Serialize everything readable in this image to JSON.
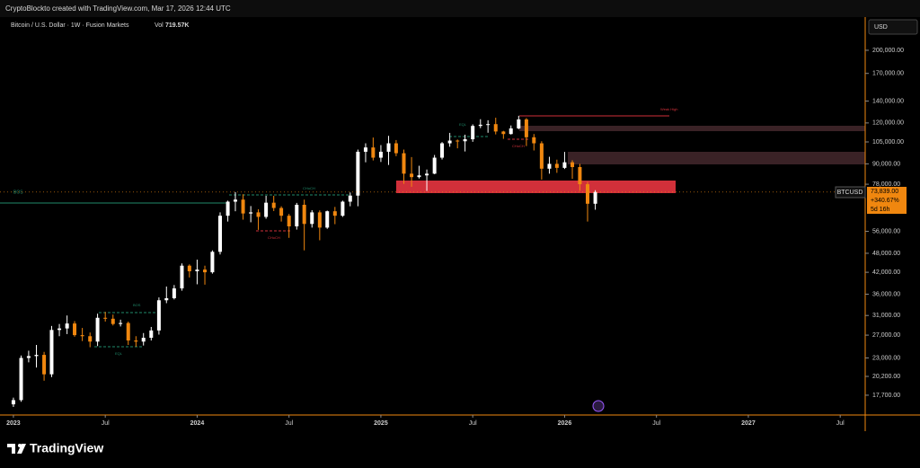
{
  "header": {
    "text": "CryptoBlockto created with TradingView.com, Mar 17, 2026 12:44 UTC"
  },
  "chart_data": {
    "type": "candlestick",
    "title": "Bitcoin / U.S. Dollar · 1W · Fusion Markets",
    "volume_label": "Vol",
    "volume": "719.57K",
    "currency": "USD",
    "log_scale": true,
    "up_color": "#ffffff",
    "down_color": "#f0870f",
    "x": [
      2023.0,
      2023.042,
      2023.083,
      2023.125,
      2023.167,
      2023.208,
      2023.25,
      2023.292,
      2023.333,
      2023.375,
      2023.417,
      2023.458,
      2023.5,
      2023.542,
      2023.583,
      2023.625,
      2023.667,
      2023.708,
      2023.75,
      2023.792,
      2023.833,
      2023.875,
      2023.917,
      2023.958,
      2024.0,
      2024.042,
      2024.083,
      2024.125,
      2024.167,
      2024.208,
      2024.25,
      2024.292,
      2024.333,
      2024.375,
      2024.417,
      2024.458,
      2024.5,
      2024.542,
      2024.583,
      2024.625,
      2024.667,
      2024.708,
      2024.75,
      2024.792,
      2024.833,
      2024.875,
      2024.917,
      2024.958,
      2025.0,
      2025.042,
      2025.083,
      2025.125,
      2025.167,
      2025.208,
      2025.25,
      2025.292,
      2025.333,
      2025.375,
      2025.417,
      2025.458,
      2025.5,
      2025.542,
      2025.583,
      2025.625,
      2025.667,
      2025.708,
      2025.75,
      2025.792,
      2025.833,
      2025.875,
      2025.917,
      2025.958,
      2026.0,
      2026.042,
      2026.083,
      2026.125,
      2026.167
    ],
    "open": [
      16600,
      17100,
      23000,
      23300,
      23500,
      20500,
      28000,
      28300,
      29300,
      27000,
      26800,
      25800,
      30500,
      30300,
      29200,
      29400,
      26000,
      25800,
      26500,
      27900,
      34500,
      35000,
      37500,
      44000,
      42300,
      42800,
      42000,
      48500,
      62500,
      69000,
      70000,
      63500,
      64000,
      62000,
      68500,
      66000,
      62500,
      58000,
      67500,
      59000,
      64000,
      57500,
      64500,
      62500,
      69000,
      72000,
      98000,
      101000,
      94000,
      98000,
      104000,
      97000,
      84000,
      82000,
      83000,
      84000,
      94000,
      104000,
      106000,
      105500,
      107000,
      117500,
      118500,
      119000,
      113000,
      111000,
      115500,
      123000,
      108500,
      104000,
      87000,
      90000,
      87500,
      91000,
      88000,
      78000,
      68000
    ],
    "high": [
      17400,
      23400,
      24200,
      25200,
      24000,
      28800,
      29200,
      31000,
      29800,
      28400,
      27500,
      31400,
      31800,
      31200,
      30100,
      29700,
      26800,
      27400,
      28600,
      35200,
      38000,
      38400,
      44700,
      44400,
      45900,
      44000,
      49000,
      64000,
      69500,
      73800,
      72700,
      66900,
      65400,
      71900,
      71900,
      66800,
      63300,
      68400,
      70000,
      65000,
      64900,
      64800,
      66500,
      69500,
      73600,
      99500,
      104000,
      108300,
      102700,
      109600,
      106400,
      99500,
      94400,
      88800,
      86500,
      95800,
      104900,
      111900,
      106800,
      110500,
      118800,
      123200,
      122300,
      124500,
      113500,
      117900,
      126200,
      124200,
      111000,
      105500,
      94600,
      92700,
      97900,
      92300,
      90000,
      79300,
      74800
    ],
    "low": [
      16300,
      16900,
      22300,
      21500,
      19600,
      20100,
      26800,
      27200,
      26700,
      25900,
      24800,
      25000,
      29700,
      28900,
      28700,
      25200,
      24900,
      25100,
      26000,
      27100,
      33800,
      34700,
      36900,
      40500,
      38600,
      38500,
      41600,
      47600,
      60000,
      64500,
      60800,
      59700,
      56600,
      61200,
      64600,
      60000,
      53500,
      56700,
      49000,
      57500,
      52600,
      57000,
      58900,
      62000,
      66800,
      66800,
      91000,
      92200,
      91200,
      89300,
      95000,
      78200,
      76600,
      81200,
      74400,
      83700,
      92800,
      101500,
      100400,
      98200,
      105100,
      115700,
      112000,
      110700,
      107300,
      110600,
      114800,
      102000,
      98900,
      80600,
      84000,
      84500,
      86800,
      81000,
      74500,
      60000,
      65200
    ],
    "close": [
      17100,
      23000,
      23300,
      23500,
      20500,
      28000,
      28300,
      29300,
      27000,
      26800,
      25800,
      30500,
      30300,
      29200,
      29400,
      26000,
      25800,
      26500,
      27900,
      34500,
      35000,
      37500,
      44000,
      42300,
      42800,
      42000,
      48500,
      62500,
      69000,
      70000,
      63500,
      64000,
      62000,
      68500,
      66000,
      62500,
      58000,
      67500,
      59000,
      64000,
      57500,
      64500,
      62500,
      69000,
      72000,
      98000,
      101000,
      94000,
      98000,
      104000,
      97000,
      84000,
      82000,
      83000,
      84000,
      94000,
      104000,
      106000,
      105500,
      107000,
      117500,
      118500,
      119000,
      113000,
      111000,
      115500,
      123000,
      108500,
      104000,
      87000,
      90000,
      87500,
      91000,
      88000,
      78000,
      68000,
      73839
    ],
    "xlim": [
      2022.927,
      2027.636
    ],
    "xticks": [
      2023,
      {
        "value": 2023.5,
        "label": "Jul"
      },
      2024,
      {
        "value": 2024.5,
        "label": "Jul"
      },
      2025,
      {
        "value": 2025.5,
        "label": "Jul"
      },
      2026,
      {
        "value": 2026.5,
        "label": "Jul"
      },
      2027,
      {
        "value": 2027.5,
        "label": "Jul"
      }
    ],
    "ylim": [
      15400,
      251000
    ],
    "yticks": [
      {
        "value": 200000,
        "label": "200,000.00"
      },
      {
        "value": 170000,
        "label": "170,000.00"
      },
      {
        "value": 140000,
        "label": "140,000.00"
      },
      {
        "value": 120000,
        "label": "120,000.00"
      },
      {
        "value": 105000,
        "label": "105,000.00"
      },
      {
        "value": 90000,
        "label": "90,000.00"
      },
      {
        "value": 78000,
        "label": "78,000.00"
      },
      {
        "value": 56000,
        "label": "56,000.00"
      },
      {
        "value": 48000,
        "label": "48,000.00"
      },
      {
        "value": 42000,
        "label": "42,000.00"
      },
      {
        "value": 36000,
        "label": "36,000.00"
      },
      {
        "value": 31000,
        "label": "31,000.00"
      },
      {
        "value": 27000,
        "label": "27,000.00"
      },
      {
        "value": 23000,
        "label": "23,000.00"
      },
      {
        "value": 20200,
        "label": "20,200.00"
      },
      {
        "value": 17700,
        "label": "17,700.00"
      }
    ],
    "price_tag": {
      "symbol": "BTCUSD",
      "price": "73,839.00",
      "change": "+340.67%",
      "countdown": "5d 16h"
    },
    "annotations": [
      "Weak High",
      "BOS",
      "CHoCH",
      "CHoCH",
      "CHoCH",
      "BOS",
      "EQL",
      "EQL"
    ]
  },
  "footer": {
    "brand": "TradingView"
  }
}
